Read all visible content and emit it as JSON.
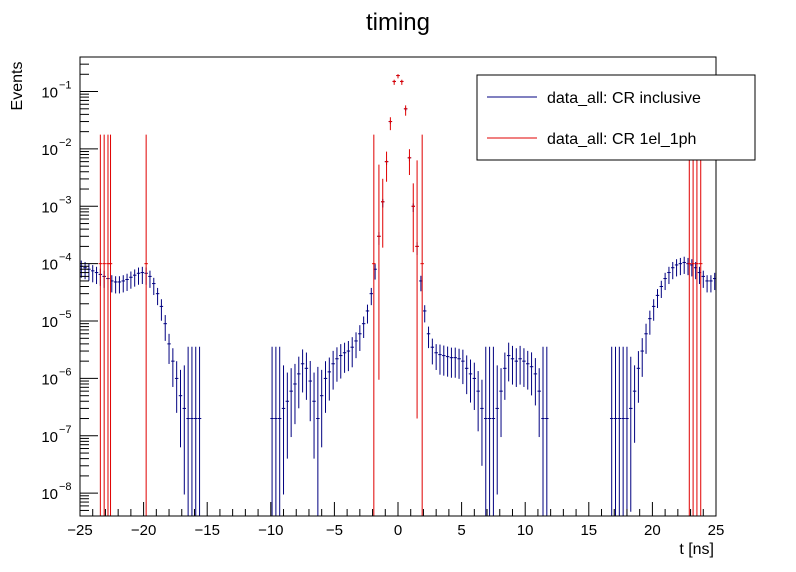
{
  "chart_data": {
    "type": "histogram",
    "title": "timing",
    "xlabel": "t [ns]",
    "ylabel": "Events",
    "xlim": [
      -25,
      25
    ],
    "ylim": [
      4e-09,
      0.4
    ],
    "yscale": "log",
    "x_ticks": [
      -25,
      -20,
      -15,
      -10,
      -5,
      0,
      5,
      10,
      15,
      20,
      25
    ],
    "x_tick_labels": [
      "−25",
      "−20",
      "−15",
      "−10",
      "−5",
      "0",
      "5",
      "10",
      "15",
      "20",
      "25"
    ],
    "y_ticks": [
      1e-08,
      1e-07,
      1e-06,
      1e-05,
      0.0001,
      0.001,
      0.01,
      0.1
    ],
    "y_tick_labels": [
      {
        "base": "10",
        "exp": "−8"
      },
      {
        "base": "10",
        "exp": "−7"
      },
      {
        "base": "10",
        "exp": "−6"
      },
      {
        "base": "10",
        "exp": "−5"
      },
      {
        "base": "10",
        "exp": "−4"
      },
      {
        "base": "10",
        "exp": "−3"
      },
      {
        "base": "10",
        "exp": "−2"
      },
      {
        "base": "10",
        "exp": "−1"
      }
    ],
    "legend": {
      "position": "top-right",
      "entries": [
        {
          "label": "data_all: CR inclusive",
          "color": "#000080"
        },
        {
          "label": "data_all: CR 1el_1ph",
          "color": "#e00000"
        }
      ]
    },
    "series": [
      {
        "name": "data_all: CR inclusive",
        "color": "#000080",
        "points": [
          [
            -24.9,
            9e-05,
            0.2
          ],
          [
            -24.6,
            8.5e-05,
            0.2
          ],
          [
            -24.3,
            8e-05,
            0.2
          ],
          [
            -24.0,
            7.5e-05,
            0.2
          ],
          [
            -23.7,
            7e-05,
            0.2
          ],
          [
            -23.4,
            6.5e-05,
            0.2
          ],
          [
            -23.1,
            6e-05,
            0.2
          ],
          [
            -22.8,
            5.5e-05,
            0.2
          ],
          [
            -22.5,
            5e-05,
            0.2
          ],
          [
            -22.2,
            4.8e-05,
            0.2
          ],
          [
            -21.9,
            4.8e-05,
            0.2
          ],
          [
            -21.6,
            5e-05,
            0.2
          ],
          [
            -21.3,
            5.3e-05,
            0.2
          ],
          [
            -21.0,
            5.8e-05,
            0.2
          ],
          [
            -20.7,
            6.3e-05,
            0.2
          ],
          [
            -20.4,
            6.8e-05,
            0.2
          ],
          [
            -20.1,
            7e-05,
            0.2
          ],
          [
            -19.8,
            6.8e-05,
            0.2
          ],
          [
            -19.5,
            6e-05,
            0.2
          ],
          [
            -19.2,
            4.5e-05,
            0.2
          ],
          [
            -18.9,
            3e-05,
            0.2
          ],
          [
            -18.6,
            1.8e-05,
            0.25
          ],
          [
            -18.3,
            9e-06,
            0.3
          ],
          [
            -18.0,
            4e-06,
            0.35
          ],
          [
            -17.7,
            2e-06,
            0.45
          ],
          [
            -17.4,
            1e-06,
            0.6
          ],
          [
            -17.1,
            5e-07,
            0.9
          ],
          [
            -16.8,
            3e-07,
            1.5
          ],
          [
            -16.5,
            2e-07,
            2.5
          ],
          [
            -16.2,
            2e-07,
            2.5
          ],
          [
            -15.9,
            2e-07,
            2.5
          ],
          [
            -15.6,
            2e-07,
            2.5
          ],
          [
            -9.9,
            2e-07,
            2.5
          ],
          [
            -9.6,
            2e-07,
            2.5
          ],
          [
            -9.3,
            2e-07,
            2.5
          ],
          [
            -9.0,
            3e-07,
            1.5
          ],
          [
            -8.7,
            4e-07,
            1.0
          ],
          [
            -8.4,
            6e-07,
            0.8
          ],
          [
            -8.1,
            8e-07,
            0.7
          ],
          [
            -7.8,
            1.2e-06,
            0.6
          ],
          [
            -7.5,
            1.8e-06,
            0.5
          ],
          [
            -7.2,
            1.5e-06,
            0.55
          ],
          [
            -6.9,
            9e-07,
            0.7
          ],
          [
            -6.6,
            4e-07,
            1.0
          ],
          [
            -6.3,
            2e-07,
            1.8
          ],
          [
            -6.0,
            5e-07,
            0.9
          ],
          [
            -5.7,
            1e-06,
            0.6
          ],
          [
            -5.4,
            1.3e-06,
            0.5
          ],
          [
            -5.1,
            1.8e-06,
            0.45
          ],
          [
            -4.8,
            2.2e-06,
            0.4
          ],
          [
            -4.5,
            2.5e-06,
            0.4
          ],
          [
            -4.2,
            2.8e-06,
            0.35
          ],
          [
            -3.9,
            3e-06,
            0.35
          ],
          [
            -3.6,
            3.5e-06,
            0.35
          ],
          [
            -3.3,
            4.5e-06,
            0.3
          ],
          [
            -3.0,
            6e-06,
            0.3
          ],
          [
            -2.7,
            9e-06,
            0.25
          ],
          [
            -2.4,
            1.5e-05,
            0.22
          ],
          [
            -2.1,
            3e-05,
            0.2
          ],
          [
            -1.8,
            8e-05,
            0.18
          ],
          [
            -1.5,
            0.0003,
            0.15
          ],
          [
            -1.2,
            0.0012,
            0.1
          ],
          [
            -0.9,
            0.006,
            0.06
          ],
          [
            -0.6,
            0.03,
            0.04
          ],
          [
            -0.3,
            0.15,
            0.02
          ],
          [
            0.0,
            0.19,
            0.02
          ],
          [
            0.3,
            0.15,
            0.02
          ],
          [
            0.6,
            0.05,
            0.04
          ],
          [
            0.9,
            0.007,
            0.06
          ],
          [
            1.2,
            0.001,
            0.1
          ],
          [
            1.5,
            0.0002,
            0.15
          ],
          [
            1.8,
            5e-05,
            0.18
          ],
          [
            2.1,
            1.5e-05,
            0.2
          ],
          [
            2.4,
            6e-06,
            0.25
          ],
          [
            2.7,
            3.5e-06,
            0.3
          ],
          [
            3.0,
            2.8e-06,
            0.3
          ],
          [
            3.3,
            2.6e-06,
            0.35
          ],
          [
            3.6,
            2.5e-06,
            0.35
          ],
          [
            3.9,
            2.4e-06,
            0.35
          ],
          [
            4.2,
            2.3e-06,
            0.35
          ],
          [
            4.5,
            2.3e-06,
            0.35
          ],
          [
            4.8,
            2.2e-06,
            0.35
          ],
          [
            5.1,
            2e-06,
            0.4
          ],
          [
            5.4,
            1.5e-06,
            0.45
          ],
          [
            5.7,
            1.2e-06,
            0.5
          ],
          [
            6.0,
            1e-06,
            0.55
          ],
          [
            6.3,
            6e-07,
            0.7
          ],
          [
            6.6,
            3e-07,
            1.0
          ],
          [
            6.9,
            2e-07,
            2.5
          ],
          [
            7.2,
            2e-07,
            2.5
          ],
          [
            7.5,
            2e-07,
            2.5
          ],
          [
            7.8,
            3e-07,
            1.5
          ],
          [
            8.1,
            6e-07,
            0.8
          ],
          [
            8.4,
            1.5e-06,
            0.55
          ],
          [
            8.7,
            2.5e-06,
            0.45
          ],
          [
            9.0,
            2.2e-06,
            0.45
          ],
          [
            9.3,
            2e-06,
            0.45
          ],
          [
            9.6,
            2.2e-06,
            0.45
          ],
          [
            9.9,
            2e-06,
            0.45
          ],
          [
            10.2,
            1.8e-06,
            0.45
          ],
          [
            10.5,
            1.6e-06,
            0.5
          ],
          [
            10.8,
            1.2e-06,
            0.55
          ],
          [
            11.1,
            6e-07,
            0.8
          ],
          [
            11.4,
            2e-07,
            2.5
          ],
          [
            11.7,
            2e-07,
            2.5
          ],
          [
            16.8,
            2e-07,
            2.5
          ],
          [
            17.1,
            2e-07,
            2.5
          ],
          [
            17.4,
            2e-07,
            2.5
          ],
          [
            17.7,
            2e-07,
            2.5
          ],
          [
            18.0,
            2e-07,
            2.5
          ],
          [
            18.3,
            3e-07,
            1.8
          ],
          [
            18.6,
            6e-07,
            0.9
          ],
          [
            18.9,
            1.5e-06,
            0.6
          ],
          [
            19.2,
            3e-06,
            0.45
          ],
          [
            19.5,
            6e-06,
            0.35
          ],
          [
            19.8,
            1.1e-05,
            0.28
          ],
          [
            20.1,
            1.8e-05,
            0.25
          ],
          [
            20.4,
            2.8e-05,
            0.22
          ],
          [
            20.7,
            4e-05,
            0.2
          ],
          [
            21.0,
            5.5e-05,
            0.2
          ],
          [
            21.3,
            7e-05,
            0.2
          ],
          [
            21.6,
            8.5e-05,
            0.2
          ],
          [
            21.9,
            9.5e-05,
            0.2
          ],
          [
            22.2,
            0.0001,
            0.2
          ],
          [
            22.5,
            0.000105,
            0.2
          ],
          [
            22.8,
            0.0001,
            0.2
          ],
          [
            23.1,
            9.5e-05,
            0.2
          ],
          [
            23.4,
            8.5e-05,
            0.2
          ],
          [
            23.7,
            7e-05,
            0.2
          ],
          [
            24.0,
            6e-05,
            0.2
          ],
          [
            24.3,
            5e-05,
            0.2
          ],
          [
            24.6,
            5e-05,
            0.2
          ],
          [
            24.9,
            5.5e-05,
            0.2
          ]
        ]
      },
      {
        "name": "data_all: CR 1el_1ph",
        "color": "#e00000",
        "points": [
          [
            -23.4,
            0.0001,
            4.5
          ],
          [
            -23.1,
            0.0001,
            4.5
          ],
          [
            -22.8,
            0.0001,
            4.5
          ],
          [
            -22.6,
            0.0001,
            4.5
          ],
          [
            -19.8,
            0.0001,
            4.5
          ],
          [
            -1.9,
            0.0001,
            4.5
          ],
          [
            -1.5,
            0.0003,
            2.5
          ],
          [
            -1.2,
            0.0012,
            0.8
          ],
          [
            -0.9,
            0.006,
            0.35
          ],
          [
            -0.6,
            0.03,
            0.15
          ],
          [
            -0.3,
            0.15,
            0.06
          ],
          [
            0.0,
            0.19,
            0.05
          ],
          [
            0.3,
            0.15,
            0.06
          ],
          [
            0.6,
            0.05,
            0.12
          ],
          [
            0.9,
            0.007,
            0.3
          ],
          [
            1.2,
            0.001,
            0.8
          ],
          [
            1.5,
            0.0002,
            3.0
          ],
          [
            1.9,
            0.0001,
            4.5
          ],
          [
            22.9,
            0.0001,
            4.5
          ],
          [
            23.2,
            0.0001,
            4.5
          ],
          [
            23.5,
            0.0001,
            4.5
          ],
          [
            23.8,
            0.0001,
            4.5
          ]
        ]
      }
    ]
  }
}
